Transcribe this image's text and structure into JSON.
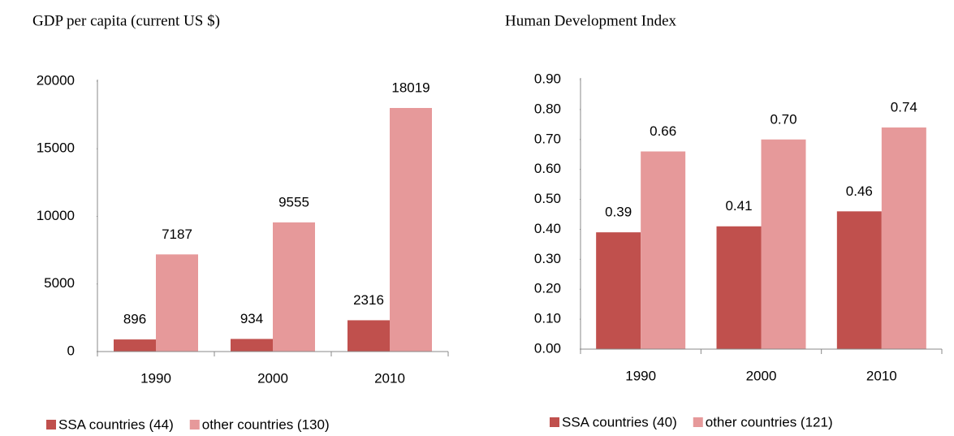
{
  "chart_data": [
    {
      "type": "bar",
      "title": "GDP per capita (current US $)",
      "categories": [
        "1990",
        "2000",
        "2010"
      ],
      "series": [
        {
          "name": "SSA countries (44)",
          "color": "#c0504d",
          "values": [
            896,
            934,
            2316
          ]
        },
        {
          "name": "other countries (130)",
          "color": "#e6999a",
          "values": [
            7187,
            9555,
            18019
          ]
        }
      ],
      "ylim": [
        0,
        20000
      ],
      "yticks": [
        0,
        5000,
        10000,
        15000,
        20000
      ],
      "grid": false,
      "legend": "bottom"
    },
    {
      "type": "bar",
      "title": "Human Development Index",
      "categories": [
        "1990",
        "2000",
        "2010"
      ],
      "series": [
        {
          "name": "SSA countries (40)",
          "color": "#c0504d",
          "values": [
            0.39,
            0.41,
            0.46
          ],
          "value_labels": [
            "0.39",
            "0.41",
            "0.46"
          ]
        },
        {
          "name": "other countries (121)",
          "color": "#e6999a",
          "values": [
            0.66,
            0.7,
            0.74
          ],
          "value_labels": [
            "0.66",
            "0.70",
            "0.74"
          ]
        }
      ],
      "ylim": [
        0,
        0.9
      ],
      "yticks": [
        {
          "value": 0,
          "label": "0.00"
        },
        {
          "value": 0.1,
          "label": "0.10"
        },
        {
          "value": 0.2,
          "label": "0.20"
        },
        {
          "value": 0.3,
          "label": "0.30"
        },
        {
          "value": 0.4,
          "label": "0.40"
        },
        {
          "value": 0.5,
          "label": "0.50"
        },
        {
          "value": 0.6,
          "label": "0.60"
        },
        {
          "value": 0.7,
          "label": "0.70"
        },
        {
          "value": 0.8,
          "label": "0.80"
        },
        {
          "value": 0.9,
          "label": "0.90"
        }
      ],
      "grid": false,
      "legend": "bottom"
    }
  ]
}
